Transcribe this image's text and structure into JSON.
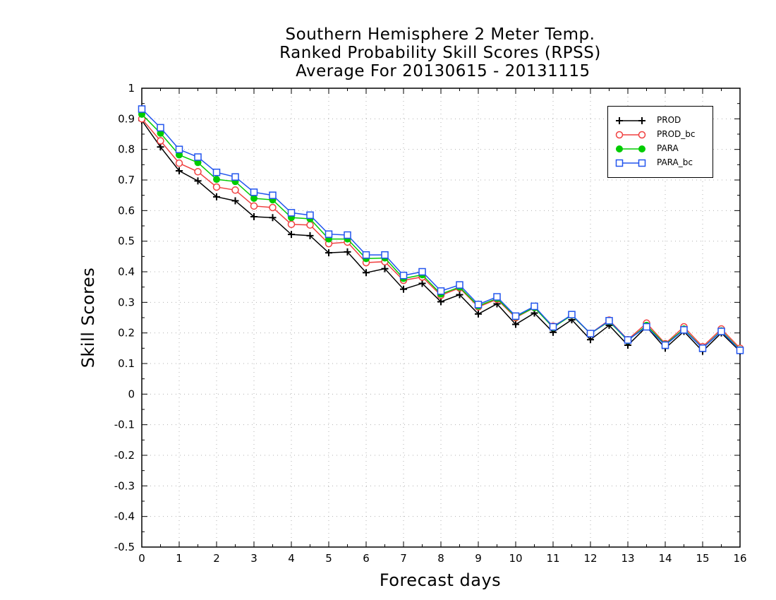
{
  "chart_data": {
    "type": "line",
    "title_lines": [
      "Southern Hemisphere 2 Meter Temp.",
      "Ranked Probability Skill Scores (RPSS)",
      " Average For 20130615 - 20131115"
    ],
    "xlabel": "Forecast days",
    "ylabel": "Skill Scores",
    "xlim": [
      0,
      16
    ],
    "ylim": [
      -0.5,
      1
    ],
    "x_ticks": [
      "0",
      "1",
      "2",
      "3",
      "4",
      "5",
      "6",
      "7",
      "8",
      "9",
      "10",
      "11",
      "12",
      "13",
      "14",
      "15",
      "16"
    ],
    "y_ticks": [
      "1",
      "0.9",
      "0.8",
      "0.7",
      "0.6",
      "0.5",
      "0.4",
      "0.3",
      "0.2",
      "0.1",
      "0",
      "-0.1",
      "-0.2",
      "-0.3",
      "-0.4",
      "-0.5"
    ],
    "grid": true,
    "legend_position": "top-right",
    "x": [
      0,
      0.5,
      1,
      1.5,
      2,
      2.5,
      3,
      3.5,
      4,
      4.5,
      5,
      5.5,
      6,
      6.5,
      7,
      7.5,
      8,
      8.5,
      9,
      9.5,
      10,
      10.5,
      11,
      11.5,
      12,
      12.5,
      13,
      13.5,
      14,
      14.5,
      15,
      15.5,
      16
    ],
    "series": [
      {
        "name": "PROD",
        "color": "#000000",
        "marker": "plus",
        "values": [
          0.895,
          0.808,
          0.73,
          0.697,
          0.645,
          0.632,
          0.58,
          0.577,
          0.522,
          0.518,
          0.462,
          0.465,
          0.397,
          0.41,
          0.343,
          0.362,
          0.302,
          0.325,
          0.262,
          0.295,
          0.228,
          0.265,
          0.202,
          0.243,
          0.178,
          0.225,
          0.16,
          0.22,
          0.15,
          0.205,
          0.14,
          0.2,
          0.14
        ]
      },
      {
        "name": "PROD_bc",
        "color": "#f04040",
        "marker": "circle-open",
        "values": [
          0.9,
          0.828,
          0.755,
          0.727,
          0.677,
          0.667,
          0.615,
          0.61,
          0.555,
          0.553,
          0.492,
          0.497,
          0.43,
          0.433,
          0.372,
          0.383,
          0.323,
          0.347,
          0.285,
          0.31,
          0.25,
          0.283,
          0.222,
          0.258,
          0.198,
          0.242,
          0.178,
          0.232,
          0.165,
          0.22,
          0.155,
          0.213,
          0.15
        ]
      },
      {
        "name": "PARA",
        "color": "#00cc00",
        "marker": "circle-filled",
        "values": [
          0.915,
          0.853,
          0.782,
          0.757,
          0.702,
          0.695,
          0.64,
          0.635,
          0.577,
          0.573,
          0.507,
          0.507,
          0.443,
          0.445,
          0.378,
          0.39,
          0.327,
          0.35,
          0.288,
          0.313,
          0.253,
          0.283,
          0.218,
          0.258,
          0.198,
          0.238,
          0.175,
          0.225,
          0.162,
          0.213,
          0.15,
          0.207,
          0.145
        ]
      },
      {
        "name": "PARA_bc",
        "color": "#2255ee",
        "marker": "square-open",
        "values": [
          0.932,
          0.871,
          0.8,
          0.775,
          0.725,
          0.71,
          0.66,
          0.65,
          0.593,
          0.585,
          0.523,
          0.52,
          0.455,
          0.455,
          0.388,
          0.4,
          0.337,
          0.357,
          0.293,
          0.318,
          0.255,
          0.287,
          0.22,
          0.26,
          0.198,
          0.24,
          0.177,
          0.22,
          0.16,
          0.21,
          0.15,
          0.205,
          0.143
        ]
      }
    ]
  }
}
